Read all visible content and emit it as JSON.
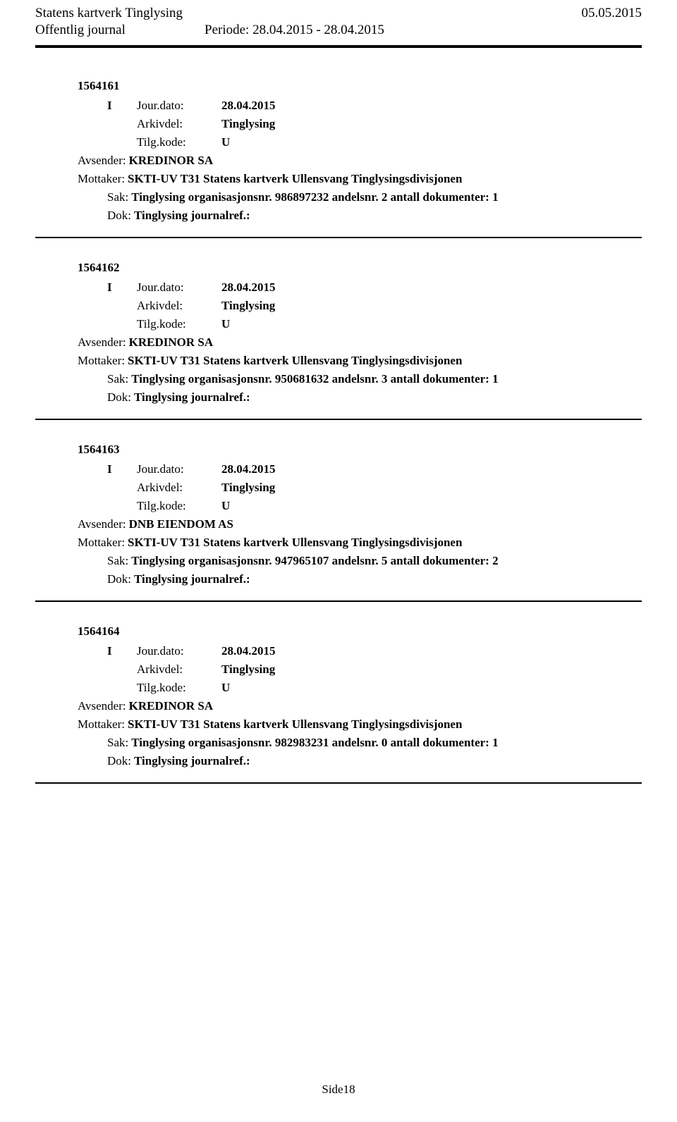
{
  "header": {
    "org_title": "Statens kartverk Tinglysing",
    "date_right": "05.05.2015",
    "journal_label": "Offentlig journal",
    "period_label": "Periode: 28.04.2015 - 28.04.2015"
  },
  "labels": {
    "jour_dato": "Jour.dato:",
    "arkivdel": "Arkivdel:",
    "tilg_kode": "Tilg.kode:",
    "avsender": "Avsender:",
    "mottaker": "Mottaker:",
    "sak": "Sak:",
    "dok": "Dok:"
  },
  "entries": [
    {
      "id": "1564161",
      "io": "I",
      "jour_dato": "28.04.2015",
      "arkivdel": "Tinglysing",
      "tilg_kode": "U",
      "avsender": "KREDINOR SA",
      "mottaker": "SKTI-UV T31 Statens kartverk Ullensvang Tinglysingsdivisjonen",
      "sak": "Tinglysing organisasjonsnr. 986897232 andelsnr. 2 antall dokumenter: 1",
      "dok": "Tinglysing journalref.:"
    },
    {
      "id": "1564162",
      "io": "I",
      "jour_dato": "28.04.2015",
      "arkivdel": "Tinglysing",
      "tilg_kode": "U",
      "avsender": "KREDINOR SA",
      "mottaker": "SKTI-UV T31 Statens kartverk Ullensvang Tinglysingsdivisjonen",
      "sak": "Tinglysing organisasjonsnr. 950681632 andelsnr. 3 antall dokumenter: 1",
      "dok": "Tinglysing journalref.:"
    },
    {
      "id": "1564163",
      "io": "I",
      "jour_dato": "28.04.2015",
      "arkivdel": "Tinglysing",
      "tilg_kode": "U",
      "avsender": "DNB EIENDOM AS",
      "mottaker": "SKTI-UV T31 Statens kartverk Ullensvang Tinglysingsdivisjonen",
      "sak": "Tinglysing organisasjonsnr. 947965107 andelsnr. 5 antall dokumenter: 2",
      "dok": "Tinglysing journalref.:"
    },
    {
      "id": "1564164",
      "io": "I",
      "jour_dato": "28.04.2015",
      "arkivdel": "Tinglysing",
      "tilg_kode": "U",
      "avsender": "KREDINOR SA",
      "mottaker": "SKTI-UV T31 Statens kartverk Ullensvang Tinglysingsdivisjonen",
      "sak": "Tinglysing organisasjonsnr. 982983231 andelsnr. 0 antall dokumenter: 1",
      "dok": "Tinglysing journalref.:"
    }
  ],
  "footer": {
    "page": "Side18"
  }
}
